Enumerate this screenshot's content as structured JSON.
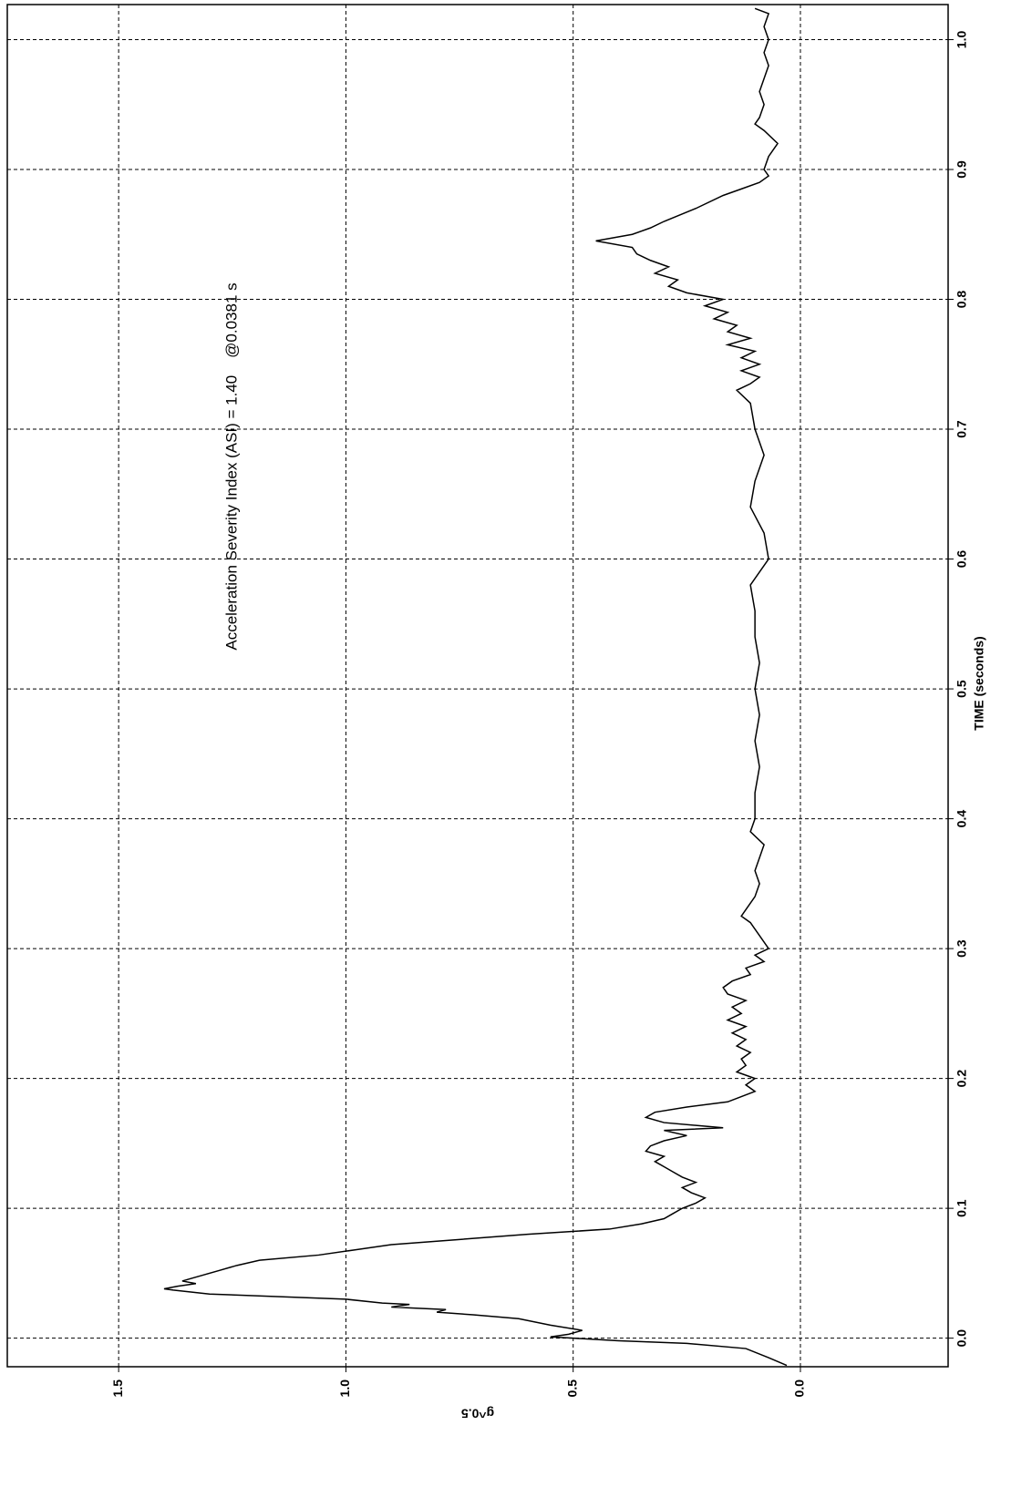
{
  "chart_data": {
    "type": "line",
    "title": "Acceleration Severity Index (ASI) = 1.40    @0.0381 s",
    "xlabel": "TIME (seconds)",
    "ylabel": "g^0.5",
    "color": "#000000",
    "grid": true,
    "xlim": [
      -0.022,
      1.027
    ],
    "ylim": [
      -0.325,
      1.745
    ],
    "xticks": [
      {
        "value": 0,
        "label": "0.0"
      },
      0.1,
      0.2,
      0.3,
      0.4,
      0.5,
      0.6,
      0.7,
      0.8,
      0.9,
      {
        "value": 1,
        "label": "1.0"
      }
    ],
    "yticks": [
      {
        "value": 0,
        "label": "0.0"
      },
      0.5,
      {
        "value": 1,
        "label": "1.0"
      },
      1.5
    ],
    "x": [
      -0.021,
      -0.015,
      -0.008,
      -0.004,
      -0.002,
      0.0,
      0.001,
      0.003,
      0.006,
      0.01,
      0.015,
      0.018,
      0.02,
      0.022,
      0.024,
      0.026,
      0.027,
      0.03,
      0.034,
      0.037,
      0.038,
      0.04,
      0.042,
      0.044,
      0.046,
      0.049,
      0.052,
      0.056,
      0.06,
      0.064,
      0.068,
      0.072,
      0.076,
      0.08,
      0.084,
      0.088,
      0.092,
      0.096,
      0.1,
      0.104,
      0.108,
      0.112,
      0.116,
      0.12,
      0.124,
      0.128,
      0.132,
      0.136,
      0.14,
      0.144,
      0.148,
      0.152,
      0.156,
      0.16,
      0.162,
      0.166,
      0.17,
      0.174,
      0.178,
      0.182,
      0.186,
      0.19,
      0.195,
      0.2,
      0.205,
      0.21,
      0.215,
      0.22,
      0.225,
      0.23,
      0.235,
      0.24,
      0.245,
      0.25,
      0.255,
      0.26,
      0.265,
      0.27,
      0.275,
      0.28,
      0.285,
      0.29,
      0.295,
      0.3,
      0.31,
      0.32,
      0.325,
      0.33,
      0.34,
      0.35,
      0.36,
      0.37,
      0.38,
      0.39,
      0.4,
      0.42,
      0.44,
      0.46,
      0.48,
      0.5,
      0.52,
      0.54,
      0.56,
      0.58,
      0.6,
      0.62,
      0.64,
      0.66,
      0.68,
      0.7,
      0.72,
      0.73,
      0.735,
      0.74,
      0.745,
      0.75,
      0.755,
      0.76,
      0.765,
      0.77,
      0.775,
      0.78,
      0.785,
      0.79,
      0.795,
      0.8,
      0.805,
      0.81,
      0.815,
      0.82,
      0.825,
      0.83,
      0.835,
      0.84,
      0.845,
      0.85,
      0.855,
      0.86,
      0.87,
      0.88,
      0.885,
      0.89,
      0.895,
      0.9,
      0.91,
      0.92,
      0.93,
      0.935,
      0.94,
      0.95,
      0.96,
      0.97,
      0.98,
      0.99,
      1.0,
      1.01,
      1.02,
      1.024
    ],
    "values": [
      0.03,
      0.07,
      0.12,
      0.25,
      0.4,
      0.5,
      0.55,
      0.51,
      0.48,
      0.55,
      0.62,
      0.72,
      0.8,
      0.78,
      0.9,
      0.86,
      0.92,
      1.0,
      1.3,
      1.38,
      1.4,
      1.37,
      1.33,
      1.36,
      1.34,
      1.31,
      1.28,
      1.24,
      1.19,
      1.06,
      0.98,
      0.9,
      0.75,
      0.6,
      0.42,
      0.35,
      0.3,
      0.28,
      0.26,
      0.23,
      0.21,
      0.24,
      0.26,
      0.23,
      0.26,
      0.28,
      0.3,
      0.32,
      0.3,
      0.34,
      0.33,
      0.3,
      0.25,
      0.3,
      0.17,
      0.3,
      0.34,
      0.32,
      0.25,
      0.16,
      0.13,
      0.1,
      0.12,
      0.1,
      0.14,
      0.12,
      0.13,
      0.11,
      0.14,
      0.12,
      0.15,
      0.12,
      0.16,
      0.13,
      0.15,
      0.12,
      0.16,
      0.17,
      0.15,
      0.11,
      0.12,
      0.08,
      0.1,
      0.07,
      0.09,
      0.11,
      0.13,
      0.12,
      0.1,
      0.09,
      0.1,
      0.09,
      0.08,
      0.11,
      0.1,
      0.1,
      0.09,
      0.1,
      0.09,
      0.1,
      0.09,
      0.1,
      0.1,
      0.11,
      0.07,
      0.08,
      0.11,
      0.1,
      0.08,
      0.1,
      0.11,
      0.14,
      0.11,
      0.09,
      0.13,
      0.09,
      0.13,
      0.1,
      0.16,
      0.11,
      0.16,
      0.14,
      0.19,
      0.16,
      0.21,
      0.17,
      0.25,
      0.29,
      0.27,
      0.32,
      0.29,
      0.33,
      0.36,
      0.37,
      0.45,
      0.37,
      0.33,
      0.3,
      0.23,
      0.17,
      0.13,
      0.09,
      0.07,
      0.08,
      0.07,
      0.05,
      0.08,
      0.1,
      0.09,
      0.08,
      0.09,
      0.08,
      0.07,
      0.08,
      0.07,
      0.08,
      0.07,
      0.1
    ]
  }
}
